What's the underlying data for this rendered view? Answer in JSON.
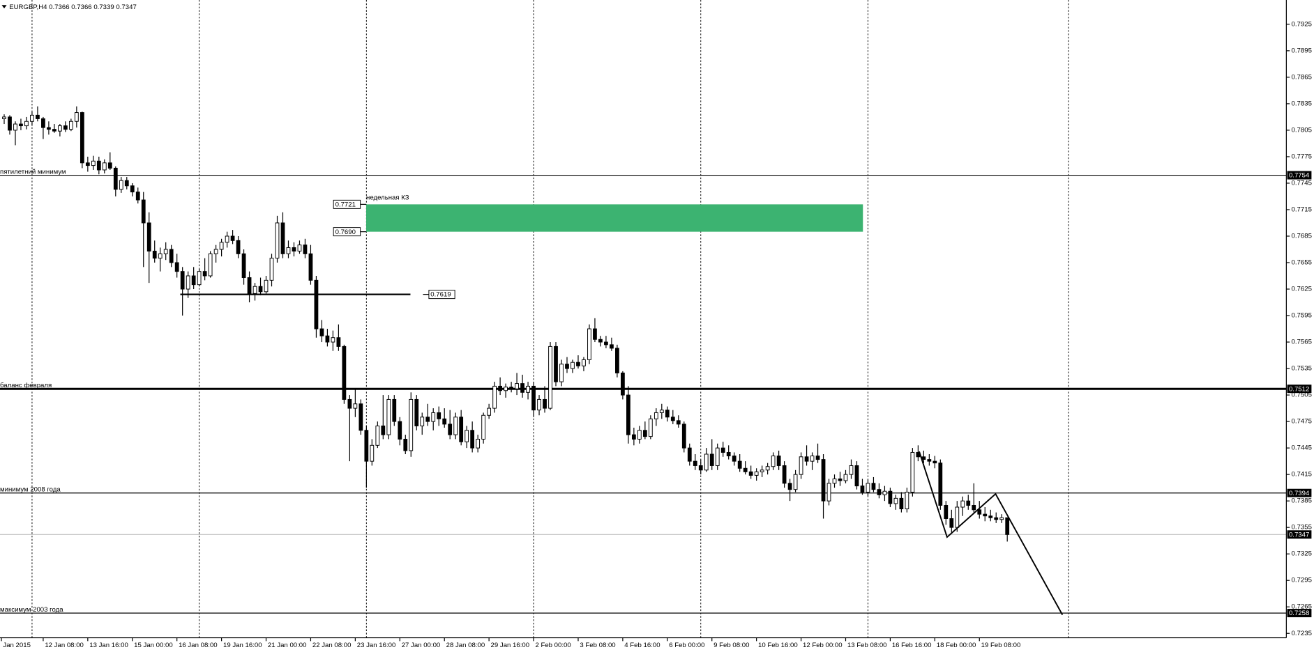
{
  "chart_data": {
    "type": "candlestick",
    "title": "EURGBP,H4",
    "title_values": [
      0.7366,
      0.7366,
      0.7339,
      0.7347
    ],
    "xlim": [
      -0.75,
      230.08
    ],
    "ylim": [
      0.723,
      0.79525
    ],
    "yticks": [
      0.7925,
      0.7895,
      0.7865,
      0.7835,
      0.7805,
      0.7775,
      0.7745,
      0.7715,
      0.7685,
      0.7655,
      0.7625,
      0.7595,
      0.7565,
      0.7535,
      0.7505,
      0.7475,
      0.7445,
      0.7415,
      0.7385,
      0.7355,
      0.7325,
      0.7295,
      0.7265,
      0.7235
    ],
    "xticks": [
      {
        "value": -0.5,
        "label": "Jan 2015"
      },
      {
        "value": 7,
        "label": "12 Jan 08:00"
      },
      {
        "value": 15,
        "label": "13 Jan 16:00"
      },
      {
        "value": 23,
        "label": "15 Jan 00:00"
      },
      {
        "value": 31,
        "label": "16 Jan 08:00"
      },
      {
        "value": 39,
        "label": "19 Jan 16:00"
      },
      {
        "value": 47,
        "label": "21 Jan 00:00"
      },
      {
        "value": 55,
        "label": "22 Jan 08:00"
      },
      {
        "value": 63,
        "label": "23 Jan 16:00"
      },
      {
        "value": 71,
        "label": "27 Jan 00:00"
      },
      {
        "value": 79,
        "label": "28 Jan 08:00"
      },
      {
        "value": 87,
        "label": "29 Jan 16:00"
      },
      {
        "value": 95,
        "label": "2 Feb 00:00"
      },
      {
        "value": 103,
        "label": "3 Feb 08:00"
      },
      {
        "value": 111,
        "label": "4 Feb 16:00"
      },
      {
        "value": 119,
        "label": "6 Feb 00:00"
      },
      {
        "value": 127,
        "label": "9 Feb 08:00"
      },
      {
        "value": 135,
        "label": "10 Feb 16:00"
      },
      {
        "value": 143,
        "label": "12 Feb 00:00"
      },
      {
        "value": 151,
        "label": "13 Feb 08:00"
      },
      {
        "value": 159,
        "label": "16 Feb 16:00"
      },
      {
        "value": 167,
        "label": "18 Feb 00:00"
      },
      {
        "value": 175,
        "label": "19 Feb 08:00"
      }
    ],
    "grid": true,
    "xgrid": [
      5,
      35,
      65,
      95,
      125,
      155,
      191
    ],
    "up_color": "#ffffff",
    "down_color": "#000000",
    "ohlc": [
      [
        0.7818,
        0.7823,
        0.7812,
        0.782
      ],
      [
        0.782,
        0.7822,
        0.78,
        0.7805
      ],
      [
        0.7805,
        0.7815,
        0.7788,
        0.7812
      ],
      [
        0.7812,
        0.7818,
        0.7805,
        0.781
      ],
      [
        0.781,
        0.782,
        0.7806,
        0.7815
      ],
      [
        0.7815,
        0.7826,
        0.781,
        0.7822
      ],
      [
        0.7822,
        0.7832,
        0.7815,
        0.7818
      ],
      [
        0.7818,
        0.782,
        0.7795,
        0.7808
      ],
      [
        0.7808,
        0.7815,
        0.78,
        0.7806
      ],
      [
        0.7806,
        0.7812,
        0.7802,
        0.7804
      ],
      [
        0.7804,
        0.7812,
        0.7798,
        0.781
      ],
      [
        0.781,
        0.7815,
        0.7803,
        0.7806
      ],
      [
        0.7806,
        0.7818,
        0.7804,
        0.7815
      ],
      [
        0.7815,
        0.7832,
        0.7808,
        0.7825
      ],
      [
        0.7825,
        0.7826,
        0.7762,
        0.7768
      ],
      [
        0.7768,
        0.7775,
        0.7758,
        0.7765
      ],
      [
        0.7765,
        0.7776,
        0.776,
        0.777
      ],
      [
        0.777,
        0.7775,
        0.7755,
        0.776
      ],
      [
        0.776,
        0.7772,
        0.7756,
        0.7768
      ],
      [
        0.7768,
        0.778,
        0.776,
        0.7762
      ],
      [
        0.7762,
        0.7764,
        0.773,
        0.7738
      ],
      [
        0.7738,
        0.7752,
        0.7734,
        0.7748
      ],
      [
        0.7748,
        0.7752,
        0.7738,
        0.7742
      ],
      [
        0.7742,
        0.7745,
        0.773,
        0.7735
      ],
      [
        0.7735,
        0.774,
        0.7722,
        0.7726
      ],
      [
        0.7726,
        0.7735,
        0.765,
        0.77
      ],
      [
        0.77,
        0.7712,
        0.7632,
        0.7668
      ],
      [
        0.7668,
        0.768,
        0.7655,
        0.766
      ],
      [
        0.766,
        0.7672,
        0.7645,
        0.7665
      ],
      [
        0.7665,
        0.7678,
        0.7658,
        0.767
      ],
      [
        0.767,
        0.7675,
        0.765,
        0.7655
      ],
      [
        0.7655,
        0.7665,
        0.7638,
        0.7645
      ],
      [
        0.7645,
        0.765,
        0.7595,
        0.7625
      ],
      [
        0.7625,
        0.7645,
        0.7615,
        0.764
      ],
      [
        0.764,
        0.765,
        0.7625,
        0.763
      ],
      [
        0.763,
        0.7648,
        0.7628,
        0.7645
      ],
      [
        0.7645,
        0.766,
        0.7635,
        0.764
      ],
      [
        0.764,
        0.7668,
        0.7638,
        0.7665
      ],
      [
        0.7665,
        0.7675,
        0.7655,
        0.767
      ],
      [
        0.767,
        0.7682,
        0.7662,
        0.7678
      ],
      [
        0.7678,
        0.769,
        0.7672,
        0.7685
      ],
      [
        0.7685,
        0.7692,
        0.7676,
        0.768
      ],
      [
        0.768,
        0.7685,
        0.766,
        0.7665
      ],
      [
        0.7665,
        0.767,
        0.763,
        0.7638
      ],
      [
        0.7638,
        0.7645,
        0.761,
        0.762
      ],
      [
        0.762,
        0.7632,
        0.7612,
        0.7628
      ],
      [
        0.7628,
        0.7638,
        0.7618,
        0.7622
      ],
      [
        0.7622,
        0.764,
        0.762,
        0.7635
      ],
      [
        0.7635,
        0.7665,
        0.7628,
        0.766
      ],
      [
        0.766,
        0.7708,
        0.7655,
        0.77
      ],
      [
        0.77,
        0.7712,
        0.766,
        0.7665
      ],
      [
        0.7665,
        0.768,
        0.766,
        0.7672
      ],
      [
        0.7672,
        0.7678,
        0.7662,
        0.7668
      ],
      [
        0.7668,
        0.768,
        0.7665,
        0.7675
      ],
      [
        0.7675,
        0.7682,
        0.766,
        0.7665
      ],
      [
        0.7665,
        0.7675,
        0.763,
        0.7635
      ],
      [
        0.7635,
        0.764,
        0.757,
        0.758
      ],
      [
        0.758,
        0.759,
        0.7565,
        0.7572
      ],
      [
        0.7572,
        0.758,
        0.756,
        0.7565
      ],
      [
        0.7565,
        0.7578,
        0.7555,
        0.757
      ],
      [
        0.757,
        0.7585,
        0.7555,
        0.756
      ],
      [
        0.756,
        0.7562,
        0.7495,
        0.75
      ],
      [
        0.75,
        0.7505,
        0.743,
        0.749
      ],
      [
        0.749,
        0.7512,
        0.748,
        0.7495
      ],
      [
        0.7495,
        0.75,
        0.746,
        0.7465
      ],
      [
        0.7465,
        0.747,
        0.74,
        0.743
      ],
      [
        0.743,
        0.7455,
        0.7425,
        0.7448
      ],
      [
        0.7448,
        0.7475,
        0.7445,
        0.747
      ],
      [
        0.747,
        0.7505,
        0.7455,
        0.746
      ],
      [
        0.746,
        0.7505,
        0.7455,
        0.75
      ],
      [
        0.75,
        0.7505,
        0.747,
        0.7475
      ],
      [
        0.7475,
        0.748,
        0.7448,
        0.7455
      ],
      [
        0.7455,
        0.746,
        0.7438,
        0.7442
      ],
      [
        0.7442,
        0.7508,
        0.7435,
        0.75
      ],
      [
        0.75,
        0.7505,
        0.7465,
        0.747
      ],
      [
        0.747,
        0.7485,
        0.746,
        0.748
      ],
      [
        0.748,
        0.7495,
        0.747,
        0.7475
      ],
      [
        0.7475,
        0.749,
        0.7465,
        0.7485
      ],
      [
        0.7485,
        0.7492,
        0.747,
        0.7478
      ],
      [
        0.7478,
        0.749,
        0.7468,
        0.7472
      ],
      [
        0.7472,
        0.7488,
        0.7455,
        0.746
      ],
      [
        0.746,
        0.7485,
        0.7455,
        0.748
      ],
      [
        0.748,
        0.7488,
        0.7448,
        0.7452
      ],
      [
        0.7452,
        0.747,
        0.7445,
        0.7465
      ],
      [
        0.7465,
        0.7475,
        0.744,
        0.7445
      ],
      [
        0.7445,
        0.746,
        0.744,
        0.7455
      ],
      [
        0.7455,
        0.7485,
        0.745,
        0.7482
      ],
      [
        0.7482,
        0.7495,
        0.7478,
        0.749
      ],
      [
        0.749,
        0.752,
        0.7485,
        0.7515
      ],
      [
        0.7515,
        0.7525,
        0.7505,
        0.751
      ],
      [
        0.751,
        0.7518,
        0.7502,
        0.7514
      ],
      [
        0.7514,
        0.752,
        0.7508,
        0.7512
      ],
      [
        0.7512,
        0.753,
        0.7505,
        0.7518
      ],
      [
        0.7518,
        0.7528,
        0.7502,
        0.7508
      ],
      [
        0.7508,
        0.752,
        0.75,
        0.7515
      ],
      [
        0.7515,
        0.752,
        0.748,
        0.7488
      ],
      [
        0.7488,
        0.7505,
        0.7482,
        0.75
      ],
      [
        0.75,
        0.7515,
        0.7485,
        0.749
      ],
      [
        0.749,
        0.7565,
        0.7488,
        0.756
      ],
      [
        0.756,
        0.7565,
        0.7515,
        0.752
      ],
      [
        0.752,
        0.7545,
        0.7515,
        0.754
      ],
      [
        0.754,
        0.7548,
        0.753,
        0.7535
      ],
      [
        0.7535,
        0.7545,
        0.753,
        0.7542
      ],
      [
        0.7542,
        0.755,
        0.7535,
        0.7538
      ],
      [
        0.7538,
        0.7548,
        0.7532,
        0.7545
      ],
      [
        0.7545,
        0.7585,
        0.754,
        0.758
      ],
      [
        0.758,
        0.7592,
        0.7565,
        0.7568
      ],
      [
        0.7568,
        0.7572,
        0.756,
        0.7565
      ],
      [
        0.7565,
        0.7572,
        0.7558,
        0.7562
      ],
      [
        0.7562,
        0.757,
        0.7555,
        0.7558
      ],
      [
        0.7558,
        0.7562,
        0.7525,
        0.753
      ],
      [
        0.753,
        0.7532,
        0.75,
        0.7505
      ],
      [
        0.7505,
        0.7515,
        0.745,
        0.746
      ],
      [
        0.746,
        0.7468,
        0.7448,
        0.7455
      ],
      [
        0.7455,
        0.747,
        0.745,
        0.7465
      ],
      [
        0.7465,
        0.7475,
        0.7455,
        0.7458
      ],
      [
        0.7458,
        0.7482,
        0.7455,
        0.7478
      ],
      [
        0.7478,
        0.749,
        0.747,
        0.7485
      ],
      [
        0.7485,
        0.7495,
        0.7478,
        0.7488
      ],
      [
        0.7488,
        0.7492,
        0.7475,
        0.748
      ],
      [
        0.748,
        0.7488,
        0.7472,
        0.7476
      ],
      [
        0.7476,
        0.7482,
        0.7468,
        0.7472
      ],
      [
        0.7472,
        0.7475,
        0.744,
        0.7445
      ],
      [
        0.7445,
        0.745,
        0.7425,
        0.743
      ],
      [
        0.743,
        0.7438,
        0.742,
        0.7425
      ],
      [
        0.7425,
        0.7432,
        0.7415,
        0.742
      ],
      [
        0.742,
        0.7445,
        0.7418,
        0.7438
      ],
      [
        0.7438,
        0.7455,
        0.742,
        0.7425
      ],
      [
        0.7425,
        0.745,
        0.742,
        0.7445
      ],
      [
        0.7445,
        0.7452,
        0.7435,
        0.744
      ],
      [
        0.744,
        0.7448,
        0.7432,
        0.7436
      ],
      [
        0.7436,
        0.744,
        0.7425,
        0.743
      ],
      [
        0.743,
        0.7438,
        0.7418,
        0.7422
      ],
      [
        0.7422,
        0.743,
        0.7415,
        0.7418
      ],
      [
        0.7418,
        0.7425,
        0.741,
        0.7414
      ],
      [
        0.7414,
        0.7422,
        0.7408,
        0.7418
      ],
      [
        0.7418,
        0.7425,
        0.7412,
        0.742
      ],
      [
        0.742,
        0.7428,
        0.7415,
        0.7424
      ],
      [
        0.7424,
        0.744,
        0.742,
        0.7436
      ],
      [
        0.7436,
        0.7442,
        0.742,
        0.7425
      ],
      [
        0.7425,
        0.743,
        0.74,
        0.7405
      ],
      [
        0.7405,
        0.741,
        0.7385,
        0.7398
      ],
      [
        0.7398,
        0.742,
        0.7395,
        0.7415
      ],
      [
        0.7415,
        0.744,
        0.741,
        0.7435
      ],
      [
        0.7435,
        0.7448,
        0.7425,
        0.743
      ],
      [
        0.743,
        0.744,
        0.742,
        0.7436
      ],
      [
        0.7436,
        0.745,
        0.7428,
        0.7432
      ],
      [
        0.7432,
        0.7438,
        0.7365,
        0.7385
      ],
      [
        0.7385,
        0.741,
        0.738,
        0.7405
      ],
      [
        0.7405,
        0.7415,
        0.74,
        0.741
      ],
      [
        0.741,
        0.7418,
        0.7402,
        0.7408
      ],
      [
        0.7408,
        0.742,
        0.7405,
        0.7415
      ],
      [
        0.7415,
        0.7432,
        0.741,
        0.7425
      ],
      [
        0.7425,
        0.743,
        0.7398,
        0.7402
      ],
      [
        0.7402,
        0.741,
        0.7392,
        0.7395
      ],
      [
        0.7395,
        0.741,
        0.739,
        0.7405
      ],
      [
        0.7405,
        0.7412,
        0.7395,
        0.7398
      ],
      [
        0.7398,
        0.7405,
        0.7388,
        0.7392
      ],
      [
        0.7392,
        0.7402,
        0.7385,
        0.7396
      ],
      [
        0.7396,
        0.74,
        0.7378,
        0.7382
      ],
      [
        0.7382,
        0.7392,
        0.7375,
        0.7388
      ],
      [
        0.7388,
        0.7395,
        0.7372,
        0.7376
      ],
      [
        0.7376,
        0.74,
        0.7372,
        0.7395
      ],
      [
        0.7395,
        0.7445,
        0.739,
        0.744
      ],
      [
        0.744,
        0.7448,
        0.743,
        0.7435
      ],
      [
        0.7435,
        0.7442,
        0.7428,
        0.7432
      ],
      [
        0.7432,
        0.7438,
        0.7425,
        0.743
      ],
      [
        0.743,
        0.7436,
        0.7422,
        0.7428
      ],
      [
        0.7428,
        0.7432,
        0.7375,
        0.738
      ],
      [
        0.738,
        0.7385,
        0.7358,
        0.7365
      ],
      [
        0.7365,
        0.7375,
        0.7348,
        0.7355
      ],
      [
        0.7355,
        0.7385,
        0.735,
        0.7378
      ],
      [
        0.7378,
        0.739,
        0.7368,
        0.7385
      ],
      [
        0.7385,
        0.7392,
        0.7375,
        0.738
      ],
      [
        0.738,
        0.7405,
        0.7372,
        0.7375
      ],
      [
        0.7375,
        0.7385,
        0.7365,
        0.737
      ],
      [
        0.737,
        0.7378,
        0.7362,
        0.7368
      ],
      [
        0.7368,
        0.7375,
        0.7362,
        0.7366
      ],
      [
        0.7366,
        0.7372,
        0.736,
        0.7364
      ],
      [
        0.7364,
        0.737,
        0.736,
        0.7366
      ],
      [
        0.7366,
        0.7366,
        0.7339,
        0.7347
      ]
    ],
    "hlines": [
      {
        "value": 0.7754,
        "label": "пятилетний минимум",
        "width": 1
      },
      {
        "value": 0.7512,
        "label": "баланс февраля",
        "width": 2.5
      },
      {
        "value": 0.7394,
        "label": "минимум 2008 года",
        "width": 1
      },
      {
        "value": 0.7258,
        "label": "максимум 2003 года",
        "width": 1
      }
    ],
    "bid": {
      "value": 0.7347,
      "color": "#c0c0c0"
    },
    "trendline": {
      "value": 0.7619,
      "x": [
        31.6,
        72.9
      ]
    },
    "zone": {
      "label": "недельная КЗ",
      "top": 0.7721,
      "bottom": {
        "value": 0.769,
        "label": "0.7690"
      },
      "x": [
        64.96,
        154.1
      ],
      "color": "#3cb371"
    },
    "zigzag": {
      "x": [
        164.2,
        169.2,
        177.9,
        189.9
      ],
      "y": [
        0.7441,
        0.7344,
        0.7393,
        0.7256
      ]
    }
  }
}
